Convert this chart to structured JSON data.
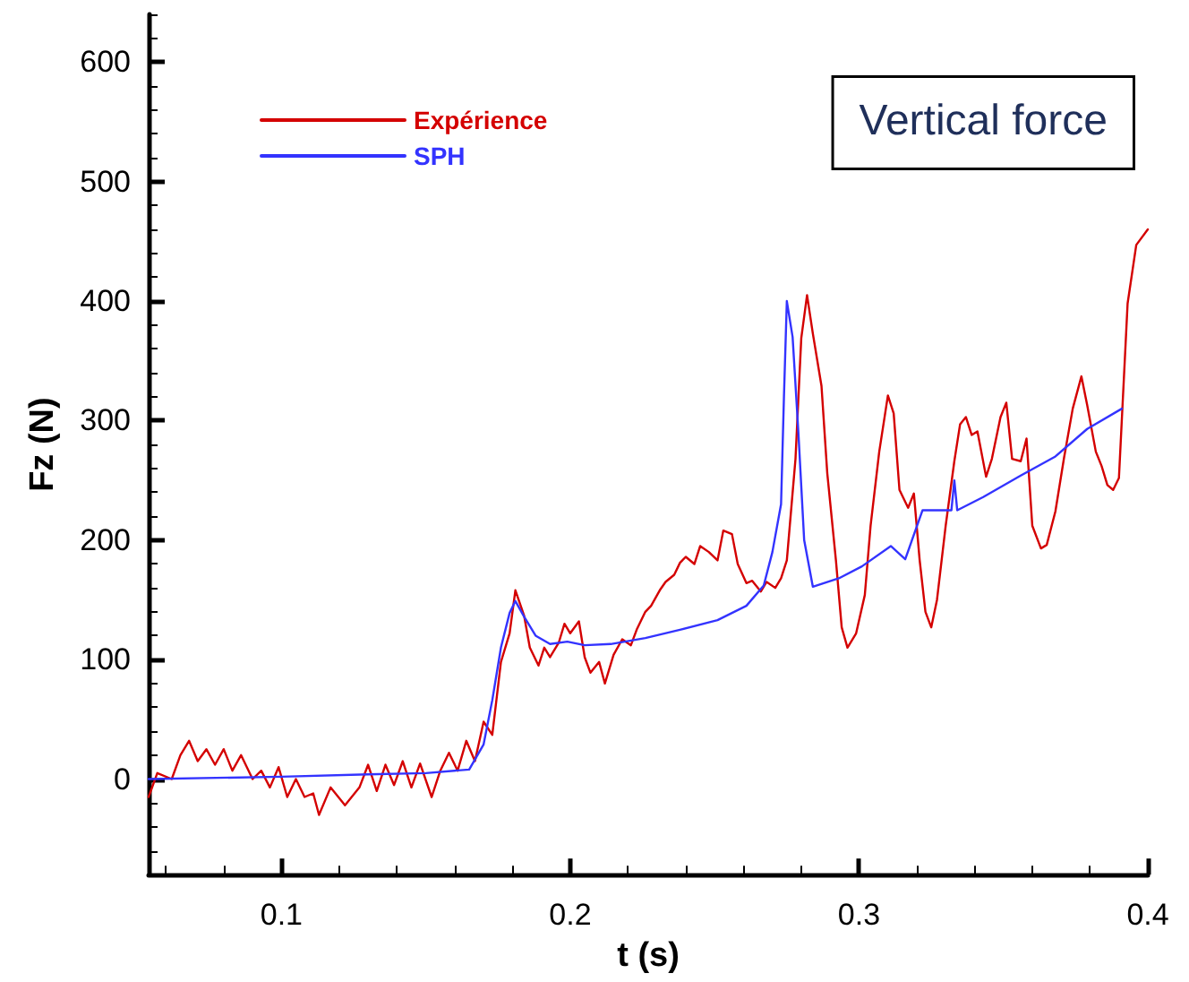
{
  "chart_data": {
    "type": "line",
    "xlabel": "t (s)",
    "ylabel": "Fz (N)",
    "annotations": [
      "Vertical force"
    ],
    "legend": "top left",
    "grid": false,
    "marker": "none",
    "line_style": "solid",
    "xlim": [
      0.054,
      0.4
    ],
    "ylim": [
      -80,
      640
    ],
    "xticks": [
      {
        "value": 0.06,
        "label": null
      },
      {
        "value": 0.08,
        "label": null
      },
      0.1,
      {
        "value": 0.12,
        "label": null
      },
      {
        "value": 0.14,
        "label": null
      },
      {
        "value": 0.16,
        "label": null
      },
      {
        "value": 0.18,
        "label": null
      },
      0.2,
      {
        "value": 0.22,
        "label": null
      },
      {
        "value": 0.24,
        "label": null
      },
      {
        "value": 0.26,
        "label": null
      },
      {
        "value": 0.28,
        "label": null
      },
      0.3,
      {
        "value": 0.32,
        "label": null
      },
      {
        "value": 0.34,
        "label": null
      },
      {
        "value": 0.36,
        "label": null
      },
      {
        "value": 0.38,
        "label": null
      },
      0.4
    ],
    "yticks": [
      {
        "value": -80,
        "label": null
      },
      {
        "value": -60,
        "label": null
      },
      {
        "value": -40,
        "label": null
      },
      {
        "value": -20,
        "label": null
      },
      0,
      {
        "value": 20,
        "label": null
      },
      {
        "value": 40,
        "label": null
      },
      {
        "value": 60,
        "label": null
      },
      {
        "value": 80,
        "label": null
      },
      100,
      {
        "value": 120,
        "label": null
      },
      {
        "value": 140,
        "label": null
      },
      {
        "value": 160,
        "label": null
      },
      {
        "value": 180,
        "label": null
      },
      200,
      {
        "value": 220,
        "label": null
      },
      {
        "value": 240,
        "label": null
      },
      {
        "value": 260,
        "label": null
      },
      {
        "value": 280,
        "label": null
      },
      300,
      {
        "value": 320,
        "label": null
      },
      {
        "value": 340,
        "label": null
      },
      {
        "value": 360,
        "label": null
      },
      {
        "value": 380,
        "label": null
      },
      400,
      {
        "value": 420,
        "label": null
      },
      {
        "value": 440,
        "label": null
      },
      {
        "value": 460,
        "label": null
      },
      {
        "value": 480,
        "label": null
      },
      500,
      {
        "value": 520,
        "label": null
      },
      {
        "value": 540,
        "label": null
      },
      {
        "value": 560,
        "label": null
      },
      {
        "value": 580,
        "label": null
      },
      600,
      {
        "value": 620,
        "label": null
      },
      {
        "value": 640,
        "label": null
      }
    ],
    "series": [
      {
        "name": "Expérience",
        "color": "#d40000",
        "x": [
          0.054,
          0.057,
          0.062,
          0.065,
          0.068,
          0.071,
          0.074,
          0.077,
          0.08,
          0.083,
          0.086,
          0.09,
          0.093,
          0.096,
          0.099,
          0.102,
          0.105,
          0.108,
          0.111,
          0.113,
          0.117,
          0.122,
          0.127,
          0.13,
          0.133,
          0.136,
          0.139,
          0.142,
          0.145,
          0.148,
          0.152,
          0.155,
          0.158,
          0.161,
          0.164,
          0.167,
          0.17,
          0.173,
          0.176,
          0.179,
          0.181,
          0.184,
          0.186,
          0.189,
          0.191,
          0.193,
          0.196,
          0.198,
          0.2,
          0.203,
          0.205,
          0.207,
          0.21,
          0.212,
          0.215,
          0.218,
          0.221,
          0.223,
          0.226,
          0.228,
          0.231,
          0.233,
          0.236,
          0.238,
          0.24,
          0.243,
          0.245,
          0.248,
          0.251,
          0.253,
          0.256,
          0.258,
          0.261,
          0.263,
          0.266,
          0.268,
          0.271,
          0.273,
          0.275,
          0.278,
          0.28,
          0.282,
          0.284,
          0.287,
          0.289,
          0.292,
          0.294,
          0.296,
          0.299,
          0.302,
          0.304,
          0.307,
          0.31,
          0.312,
          0.314,
          0.317,
          0.319,
          0.321,
          0.323,
          0.325,
          0.327,
          0.33,
          0.333,
          0.335,
          0.337,
          0.339,
          0.341,
          0.344,
          0.346,
          0.349,
          0.351,
          0.353,
          0.356,
          0.358,
          0.36,
          0.363,
          0.365,
          0.368,
          0.371,
          0.374,
          0.377,
          0.379,
          0.382,
          0.384,
          0.386,
          0.388,
          0.39,
          0.393,
          0.396,
          0.4
        ],
        "values": [
          -15,
          5,
          0,
          20,
          32,
          15,
          25,
          12,
          25,
          7,
          20,
          0,
          7,
          -7,
          10,
          -15,
          0,
          -15,
          -12,
          -30,
          -7,
          -22,
          -7,
          12,
          -10,
          12,
          -5,
          15,
          -7,
          13,
          -15,
          7,
          22,
          7,
          32,
          15,
          48,
          37,
          98,
          122,
          158,
          137,
          110,
          95,
          110,
          102,
          114,
          130,
          122,
          132,
          102,
          89,
          98,
          80,
          104,
          117,
          112,
          125,
          140,
          145,
          158,
          165,
          171,
          181,
          186,
          180,
          195,
          190,
          183,
          208,
          205,
          180,
          164,
          166,
          157,
          165,
          160,
          168,
          183,
          268,
          369,
          405,
          373,
          329,
          256,
          183,
          127,
          110,
          122,
          154,
          212,
          274,
          321,
          306,
          242,
          227,
          239,
          183,
          140,
          127,
          150,
          212,
          266,
          297,
          303,
          288,
          291,
          253,
          268,
          303,
          315,
          268,
          266,
          285,
          212,
          193,
          196,
          224,
          269,
          310,
          337,
          313,
          274,
          262,
          246,
          242,
          252,
          398,
          447,
          460
        ]
      },
      {
        "name": "SPH",
        "color": "#3333ff",
        "x": [
          0.054,
          0.1,
          0.13,
          0.15,
          0.165,
          0.17,
          0.173,
          0.176,
          0.179,
          0.181,
          0.184,
          0.188,
          0.193,
          0.199,
          0.205,
          0.214,
          0.226,
          0.238,
          0.251,
          0.261,
          0.267,
          0.27,
          0.273,
          0.274,
          0.275,
          0.277,
          0.279,
          0.281,
          0.284,
          0.293,
          0.301,
          0.311,
          0.316,
          0.322,
          0.332,
          0.333,
          0.334,
          0.343,
          0.356,
          0.368,
          0.379,
          0.391
        ],
        "values": [
          0,
          2,
          4,
          5,
          8,
          29,
          66,
          110,
          139,
          149,
          136,
          120,
          113,
          115,
          112,
          113,
          118,
          125,
          133,
          145,
          162,
          190,
          230,
          320,
          400,
          370,
          290,
          200,
          161,
          168,
          178,
          195,
          184,
          225,
          225,
          250,
          225,
          236,
          254,
          270,
          293,
          310
        ]
      }
    ]
  }
}
